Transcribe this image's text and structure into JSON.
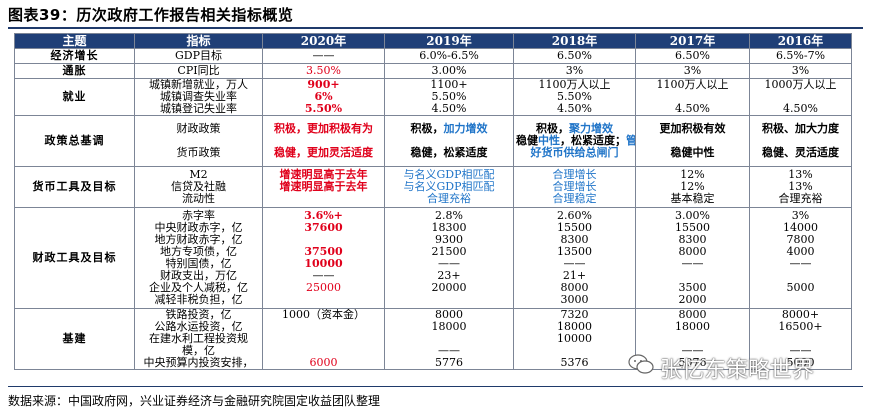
{
  "title": "图表39：历次政府工作报告相关指标概览",
  "headers": [
    "主题",
    "指标",
    "2020年",
    "2019年",
    "2018年",
    "2017年",
    "2016年"
  ],
  "rows": [
    {
      "cat": "经济增长",
      "cls": "r-econ",
      "ind": [
        "GDP目标"
      ],
      "y2020": [
        {
          "t": "——"
        }
      ],
      "y2019": [
        {
          "t": "6.0%-6.5%"
        }
      ],
      "y2018": [
        {
          "t": "6.50%"
        }
      ],
      "y2017": [
        {
          "t": "6.50%"
        }
      ],
      "y2016": [
        {
          "t": "6.5%-7%"
        }
      ]
    },
    {
      "cat": "通胀",
      "cls": "r-cpi",
      "ind": [
        "CPI同比"
      ],
      "y2020": [
        {
          "t": "3.50%",
          "c": "red"
        }
      ],
      "y2019": [
        {
          "t": "3.00%"
        }
      ],
      "y2018": [
        {
          "t": "3%"
        }
      ],
      "y2017": [
        {
          "t": "3%"
        }
      ],
      "y2016": [
        {
          "t": "3%"
        }
      ]
    },
    {
      "cat": "就业",
      "cls": "r-emp",
      "ind": [
        "城镇新增就业，万人",
        "城镇调查失业率",
        "城镇登记失业率"
      ],
      "y2020": [
        {
          "t": "900+",
          "c": "red bold"
        },
        {
          "t": "6%",
          "c": "red bold"
        },
        {
          "t": "5.50%",
          "c": "red bold"
        }
      ],
      "y2019": [
        {
          "t": "1100+"
        },
        {
          "t": "5.50%"
        },
        {
          "t": "4.50%"
        }
      ],
      "y2018": [
        {
          "t": "1100万人以上"
        },
        {
          "t": "5.50%"
        },
        {
          "t": "4.50%"
        }
      ],
      "y2017": [
        {
          "t": "1100万人以上"
        },
        {
          "t": ""
        },
        {
          "t": "4.50%"
        }
      ],
      "y2016": [
        {
          "t": "1000万人以上"
        },
        {
          "t": ""
        },
        {
          "t": "4.50%"
        }
      ]
    },
    {
      "cat": "政策总基调",
      "cls": "r-pol",
      "ind": [
        "财政政策",
        "",
        "货币政策"
      ],
      "y2020": [
        {
          "t": "积极，更加积极有为",
          "c": "red bold"
        },
        {
          "t": ""
        },
        {
          "t": "稳健，更加灵活适度",
          "c": "red bold"
        }
      ],
      "y2019": [
        {
          "parts": [
            {
              "t": "积极，",
              "c": "bold"
            },
            {
              "t": "加力增效",
              "c": "blue bold"
            }
          ]
        },
        {
          "t": ""
        },
        {
          "parts": [
            {
              "t": "稳健，",
              "c": "bold"
            },
            {
              "t": "松紧适度",
              "c": "bold"
            }
          ]
        }
      ],
      "y2018": [
        {
          "parts": [
            {
              "t": "积极，",
              "c": "bold"
            },
            {
              "t": "聚力增效",
              "c": "blue bold"
            }
          ]
        },
        {
          "parts": [
            {
              "t": "稳健",
              "c": "bold"
            },
            {
              "t": "中性",
              "c": "blue bold"
            },
            {
              "t": "，松紧适度；",
              "c": "bold"
            },
            {
              "t": "管",
              "c": "blue bold"
            }
          ]
        },
        {
          "t": "好货币供给总闸门",
          "c": "blue bold"
        }
      ],
      "y2017": [
        {
          "t": "更加积极有效",
          "c": "bold"
        },
        {
          "t": ""
        },
        {
          "t": "稳健中性",
          "c": "bold"
        }
      ],
      "y2016": [
        {
          "t": "积极、加大力度",
          "c": "bold"
        },
        {
          "t": ""
        },
        {
          "t": "稳健、灵活适度",
          "c": "bold"
        }
      ]
    },
    {
      "cat": "货币工具及目标",
      "cls": "r-mon",
      "ind": [
        "M2",
        "信贷及社融",
        "流动性"
      ],
      "y2020": [
        {
          "t": "增速明显高于去年",
          "c": "red bold"
        },
        {
          "t": "增速明显高于去年",
          "c": "red bold"
        },
        {
          "t": ""
        }
      ],
      "y2019": [
        {
          "t": "与名义GDP相匹配",
          "c": "blue"
        },
        {
          "t": "与名义GDP相匹配",
          "c": "blue"
        },
        {
          "t": "合理充裕",
          "c": "blue"
        }
      ],
      "y2018": [
        {
          "t": "合理增长",
          "c": "blue"
        },
        {
          "t": "合理增长",
          "c": "blue"
        },
        {
          "t": "合理稳定",
          "c": "blue"
        }
      ],
      "y2017": [
        {
          "t": "12%"
        },
        {
          "t": "12%"
        },
        {
          "t": "基本稳定"
        }
      ],
      "y2016": [
        {
          "t": "13%"
        },
        {
          "t": "13%"
        },
        {
          "t": "合理充裕"
        }
      ]
    },
    {
      "cat": "财政工具及目标",
      "cls": "r-fis",
      "ind": [
        "赤字率",
        "中央财政赤字，亿",
        "地方财政赤字，亿",
        "地方专项债，亿",
        "特别国债，亿",
        "财政支出，万亿",
        "企业及个人减税，亿",
        "减轻非税负担，亿"
      ],
      "y2020": [
        {
          "t": "3.6%+",
          "c": "red bold"
        },
        {
          "t": "37600",
          "c": "red bold"
        },
        {
          "t": ""
        },
        {
          "t": "37500",
          "c": "red bold"
        },
        {
          "t": "10000",
          "c": "red bold"
        },
        {
          "t": "——"
        },
        {
          "t": "25000",
          "c": "red"
        },
        {
          "t": ""
        }
      ],
      "y2019": [
        {
          "t": "2.8%"
        },
        {
          "t": "18300"
        },
        {
          "t": "9300"
        },
        {
          "t": "21500"
        },
        {
          "t": "——"
        },
        {
          "t": "23+"
        },
        {
          "t": "20000"
        },
        {
          "t": ""
        }
      ],
      "y2018": [
        {
          "t": "2.60%"
        },
        {
          "t": "15500"
        },
        {
          "t": "8300"
        },
        {
          "t": "13500"
        },
        {
          "t": "——"
        },
        {
          "t": "21+"
        },
        {
          "t": "8000"
        },
        {
          "t": "3000"
        }
      ],
      "y2017": [
        {
          "t": "3.00%"
        },
        {
          "t": "15500"
        },
        {
          "t": "8300"
        },
        {
          "t": "8000"
        },
        {
          "t": "——"
        },
        {
          "t": ""
        },
        {
          "t": "3500"
        },
        {
          "t": "2000"
        }
      ],
      "y2016": [
        {
          "t": "3%"
        },
        {
          "t": "14000"
        },
        {
          "t": "7800"
        },
        {
          "t": "4000"
        },
        {
          "t": "——"
        },
        {
          "t": ""
        },
        {
          "t": "5000"
        },
        {
          "t": ""
        }
      ]
    },
    {
      "cat": "基建",
      "cls": "r-inf",
      "ind": [
        "铁路投资，亿",
        "公路水运投资，亿",
        "在建水利工程投资规",
        "模，亿",
        "中央预算内投资安排，"
      ],
      "y2020": [
        {
          "t": "1000（资本金）"
        },
        {
          "t": ""
        },
        {
          "t": ""
        },
        {
          "t": ""
        },
        {
          "t": "6000",
          "c": "red"
        }
      ],
      "y2019": [
        {
          "t": "8000"
        },
        {
          "t": "18000"
        },
        {
          "t": ""
        },
        {
          "t": "——"
        },
        {
          "t": "5776"
        }
      ],
      "y2018": [
        {
          "t": "7320"
        },
        {
          "t": "18000"
        },
        {
          "t": "10000"
        },
        {
          "t": ""
        },
        {
          "t": "5376"
        }
      ],
      "y2017": [
        {
          "t": "8000"
        },
        {
          "t": "18000"
        },
        {
          "t": ""
        },
        {
          "t": "——"
        },
        {
          "t": "5076"
        }
      ],
      "y2016": [
        {
          "t": "8000+"
        },
        {
          "t": "16500+"
        },
        {
          "t": ""
        },
        {
          "t": "——"
        },
        {
          "t": "5000"
        }
      ]
    }
  ],
  "source": "数据来源：中国政府网，兴业证券经济与金融研究院固定收益团队整理",
  "watermark": "张忆东策略世界"
}
